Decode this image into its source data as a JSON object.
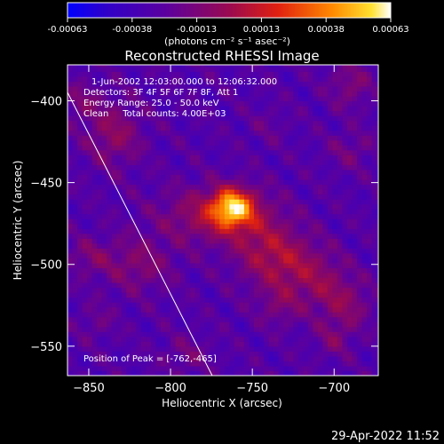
{
  "colorbar": {
    "ticks": [
      "-0.00063",
      "-0.00038",
      "-0.00013",
      "0.00013",
      "0.00038",
      "0.00063"
    ],
    "units": "(photons cm⁻² s⁻¹ asec⁻²)"
  },
  "chart_data": {
    "type": "heatmap",
    "title": "Reconstructed RHESSI Image",
    "xlabel": "Heliocentric X (arcsec)",
    "ylabel": "Heliocentric Y (arcsec)",
    "xlim": [
      -863,
      -673
    ],
    "ylim": [
      -568,
      -378
    ],
    "xticks": [
      -850,
      -800,
      -750,
      -700
    ],
    "yticks": [
      -400,
      -450,
      -500,
      -550
    ],
    "xtick_labels": [
      "−850",
      "−800",
      "−750",
      "−700"
    ],
    "ytick_labels": [
      "−400",
      "−450",
      "−500",
      "−550"
    ],
    "value_range": [
      -0.00063,
      0.00063
    ],
    "colormap": "purple-red-yellow-white",
    "annotations": [
      "1-Jun-2002 12:03:00.000 to 12:06:32.000",
      "Detectors: 3F 4F 5F 6F 7F 8F, Att 1",
      "Energy Range: 25.0 - 50.0 keV",
      "Clean     Total counts: 4.00E+03",
      "Position of Peak = [-762,-465]"
    ],
    "peak": {
      "x": -762,
      "y": -465
    }
  },
  "footer_timestamp": "29-Apr-2022 11:52"
}
